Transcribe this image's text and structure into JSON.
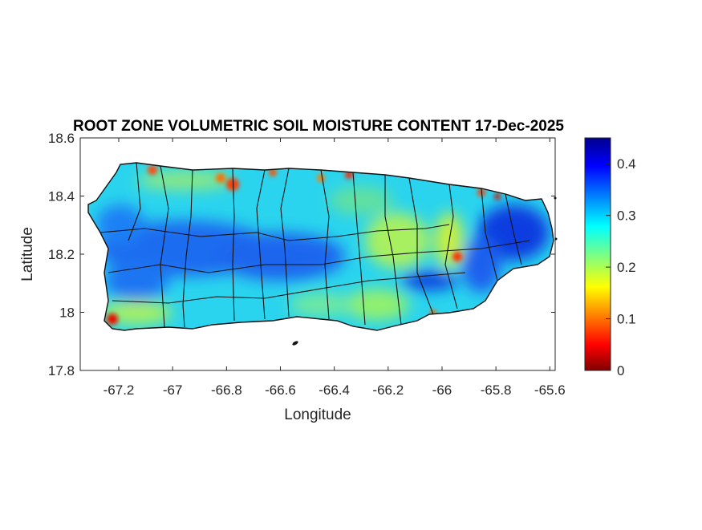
{
  "chart_data": {
    "type": "heatmap",
    "title": "ROOT ZONE VOLUMETRIC SOIL MOISTURE CONTENT 17-Dec-2025",
    "xlabel": "Longitude",
    "ylabel": "Latitude",
    "xlim": [
      -67.343,
      -65.58
    ],
    "ylim": [
      17.8,
      18.6
    ],
    "xticks": [
      -67.2,
      -67,
      -66.8,
      -66.6,
      -66.4,
      -66.2,
      -66,
      -65.8,
      -65.6
    ],
    "xtick_labels": [
      "-67.2",
      "-67",
      "-66.8",
      "-66.6",
      "-66.4",
      "-66.2",
      "-66",
      "-65.8",
      "-65.6"
    ],
    "yticks": [
      17.8,
      18,
      18.2,
      18.4,
      18.6
    ],
    "ytick_labels": [
      "17.8",
      "18",
      "18.2",
      "18.4",
      "18.6"
    ],
    "colorbar": {
      "colormap": "jet",
      "range": [
        0,
        0.45
      ],
      "ticks": [
        0,
        0.1,
        0.2,
        0.3,
        0.4
      ],
      "tick_labels": [
        "0",
        "0.1",
        "0.2",
        "0.3",
        "0.4"
      ]
    },
    "region": "Puerto Rico",
    "typical_values": {
      "west_central": 0.35,
      "east_northeast": 0.38,
      "central_east": 0.22,
      "north_coast_spots": 0.1,
      "south_coast": 0.24
    }
  }
}
